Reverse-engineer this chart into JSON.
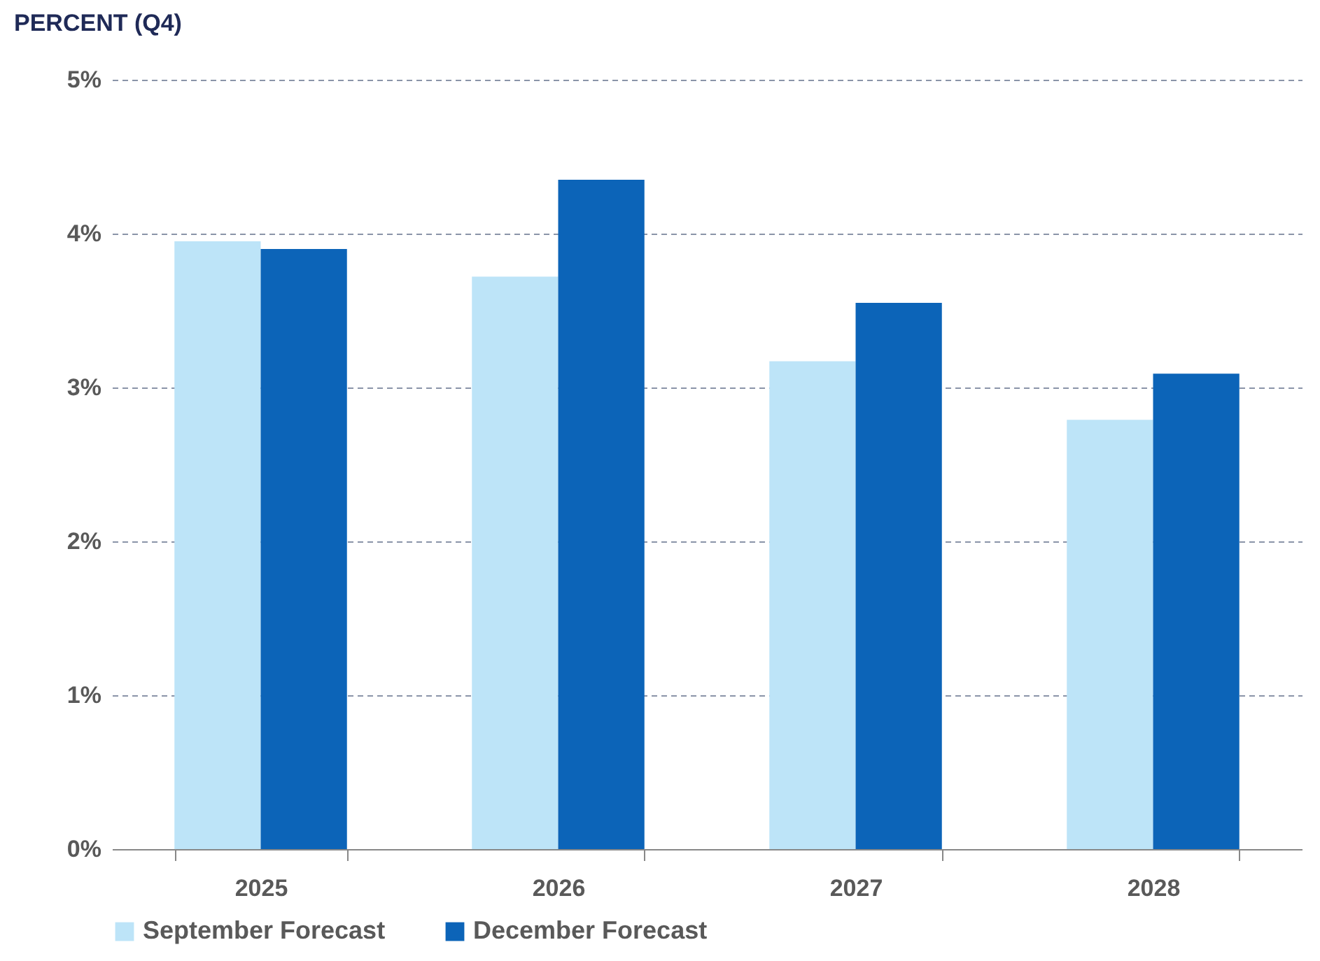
{
  "chart_data": {
    "type": "bar",
    "title": "PERCENT (Q4)",
    "categories": [
      "2025",
      "2026",
      "2027",
      "2028"
    ],
    "series": [
      {
        "name": "September Forecast",
        "color": "#bde4f8",
        "values": [
          3.95,
          3.72,
          3.17,
          2.79
        ]
      },
      {
        "name": "December Forecast",
        "color": "#0c64b8",
        "values": [
          3.9,
          4.35,
          3.55,
          3.09
        ]
      }
    ],
    "ylim": [
      0,
      5
    ],
    "yticks": [
      {
        "value": 0,
        "label": "0%"
      },
      {
        "value": 1,
        "label": "1%"
      },
      {
        "value": 2,
        "label": "2%"
      },
      {
        "value": 3,
        "label": "3%"
      },
      {
        "value": 4,
        "label": "4%"
      },
      {
        "value": 5,
        "label": "5%"
      }
    ],
    "grid": "y",
    "legend": "bottom"
  }
}
